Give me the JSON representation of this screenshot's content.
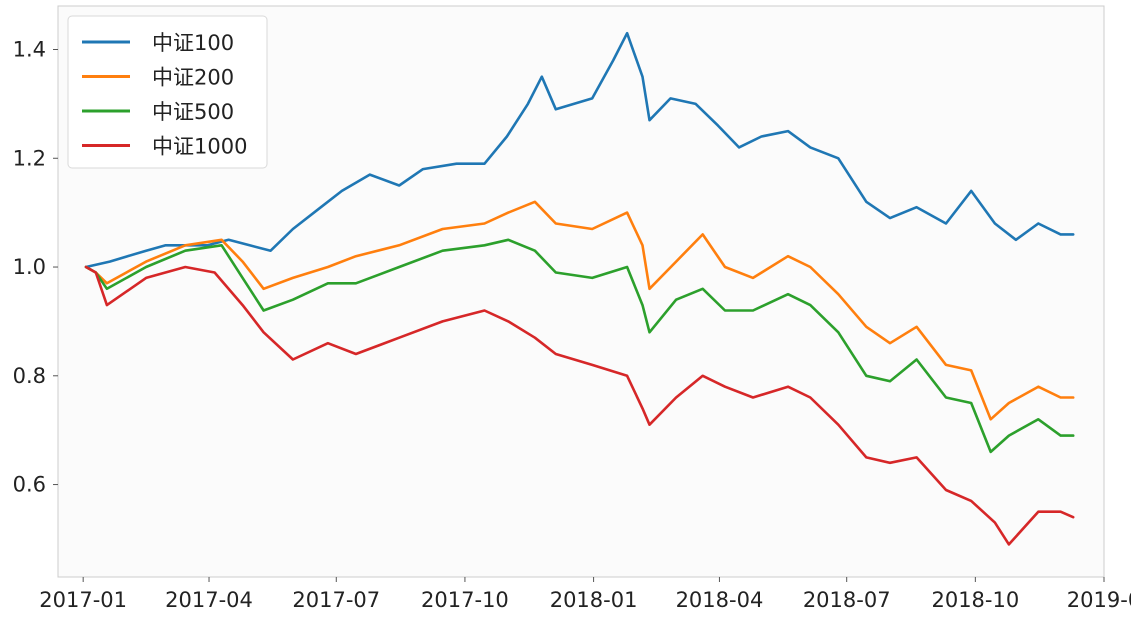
{
  "chart_data": {
    "type": "line",
    "title": "",
    "xlabel": "",
    "ylabel": "",
    "grid": false,
    "legend_position": "top-left",
    "x_ticks": [
      "2017-01",
      "2017-04",
      "2017-07",
      "2017-10",
      "2018-01",
      "2018-04",
      "2018-07",
      "2018-10",
      "2019-0"
    ],
    "x_tick_dates": [
      "2017-01-01",
      "2017-04-01",
      "2017-07-01",
      "2017-10-01",
      "2018-01-01",
      "2018-04-01",
      "2018-07-01",
      "2018-10-01",
      "2019-01-01"
    ],
    "xlim": [
      "2016-12-14",
      "2019-01-01"
    ],
    "y_ticks": [
      "0.6",
      "0.8",
      "1.0",
      "1.2",
      "1.4"
    ],
    "ylim": [
      0.43,
      1.48
    ],
    "series": [
      {
        "name": "中证100",
        "color": "#1f77b4",
        "points": [
          [
            "2017-01-03",
            1.0
          ],
          [
            "2017-01-20",
            1.01
          ],
          [
            "2017-02-15",
            1.03
          ],
          [
            "2017-03-01",
            1.04
          ],
          [
            "2017-03-31",
            1.04
          ],
          [
            "2017-04-15",
            1.05
          ],
          [
            "2017-04-30",
            1.04
          ],
          [
            "2017-05-15",
            1.03
          ],
          [
            "2017-05-31",
            1.07
          ],
          [
            "2017-06-20",
            1.11
          ],
          [
            "2017-07-05",
            1.14
          ],
          [
            "2017-07-25",
            1.17
          ],
          [
            "2017-08-15",
            1.15
          ],
          [
            "2017-09-01",
            1.18
          ],
          [
            "2017-09-25",
            1.19
          ],
          [
            "2017-10-15",
            1.19
          ],
          [
            "2017-10-31",
            1.24
          ],
          [
            "2017-11-15",
            1.3
          ],
          [
            "2017-11-25",
            1.35
          ],
          [
            "2017-12-05",
            1.29
          ],
          [
            "2017-12-31",
            1.31
          ],
          [
            "2018-01-15",
            1.38
          ],
          [
            "2018-01-25",
            1.43
          ],
          [
            "2018-02-05",
            1.35
          ],
          [
            "2018-02-10",
            1.27
          ],
          [
            "2018-02-25",
            1.31
          ],
          [
            "2018-03-15",
            1.3
          ],
          [
            "2018-03-31",
            1.26
          ],
          [
            "2018-04-15",
            1.22
          ],
          [
            "2018-05-01",
            1.24
          ],
          [
            "2018-05-20",
            1.25
          ],
          [
            "2018-06-05",
            1.22
          ],
          [
            "2018-06-25",
            1.2
          ],
          [
            "2018-07-15",
            1.12
          ],
          [
            "2018-08-01",
            1.09
          ],
          [
            "2018-08-20",
            1.11
          ],
          [
            "2018-09-10",
            1.08
          ],
          [
            "2018-09-28",
            1.14
          ],
          [
            "2018-10-15",
            1.08
          ],
          [
            "2018-10-30",
            1.05
          ],
          [
            "2018-11-15",
            1.08
          ],
          [
            "2018-12-01",
            1.06
          ],
          [
            "2018-12-10",
            1.06
          ]
        ]
      },
      {
        "name": "中证200",
        "color": "#ff7f0e",
        "points": [
          [
            "2017-01-03",
            1.0
          ],
          [
            "2017-01-10",
            0.99
          ],
          [
            "2017-01-18",
            0.97
          ],
          [
            "2017-02-15",
            1.01
          ],
          [
            "2017-03-15",
            1.04
          ],
          [
            "2017-04-10",
            1.05
          ],
          [
            "2017-04-25",
            1.01
          ],
          [
            "2017-05-10",
            0.96
          ],
          [
            "2017-05-31",
            0.98
          ],
          [
            "2017-06-25",
            1.0
          ],
          [
            "2017-07-15",
            1.02
          ],
          [
            "2017-08-15",
            1.04
          ],
          [
            "2017-09-15",
            1.07
          ],
          [
            "2017-10-15",
            1.08
          ],
          [
            "2017-11-01",
            1.1
          ],
          [
            "2017-11-20",
            1.12
          ],
          [
            "2017-12-05",
            1.08
          ],
          [
            "2017-12-31",
            1.07
          ],
          [
            "2018-01-25",
            1.1
          ],
          [
            "2018-02-05",
            1.04
          ],
          [
            "2018-02-10",
            0.96
          ],
          [
            "2018-03-01",
            1.01
          ],
          [
            "2018-03-20",
            1.06
          ],
          [
            "2018-04-05",
            1.0
          ],
          [
            "2018-04-25",
            0.98
          ],
          [
            "2018-05-20",
            1.02
          ],
          [
            "2018-06-05",
            1.0
          ],
          [
            "2018-06-25",
            0.95
          ],
          [
            "2018-07-15",
            0.89
          ],
          [
            "2018-08-01",
            0.86
          ],
          [
            "2018-08-20",
            0.89
          ],
          [
            "2018-09-10",
            0.82
          ],
          [
            "2018-09-28",
            0.81
          ],
          [
            "2018-10-12",
            0.72
          ],
          [
            "2018-10-25",
            0.75
          ],
          [
            "2018-11-15",
            0.78
          ],
          [
            "2018-12-01",
            0.76
          ],
          [
            "2018-12-10",
            0.76
          ]
        ]
      },
      {
        "name": "中证500",
        "color": "#2ca02c",
        "points": [
          [
            "2017-01-03",
            1.0
          ],
          [
            "2017-01-10",
            0.99
          ],
          [
            "2017-01-18",
            0.96
          ],
          [
            "2017-02-15",
            1.0
          ],
          [
            "2017-03-15",
            1.03
          ],
          [
            "2017-04-10",
            1.04
          ],
          [
            "2017-04-25",
            0.98
          ],
          [
            "2017-05-10",
            0.92
          ],
          [
            "2017-05-31",
            0.94
          ],
          [
            "2017-06-25",
            0.97
          ],
          [
            "2017-07-15",
            0.97
          ],
          [
            "2017-08-15",
            1.0
          ],
          [
            "2017-09-15",
            1.03
          ],
          [
            "2017-10-15",
            1.04
          ],
          [
            "2017-11-01",
            1.05
          ],
          [
            "2017-11-20",
            1.03
          ],
          [
            "2017-12-05",
            0.99
          ],
          [
            "2017-12-31",
            0.98
          ],
          [
            "2018-01-25",
            1.0
          ],
          [
            "2018-02-05",
            0.93
          ],
          [
            "2018-02-10",
            0.88
          ],
          [
            "2018-03-01",
            0.94
          ],
          [
            "2018-03-20",
            0.96
          ],
          [
            "2018-04-05",
            0.92
          ],
          [
            "2018-04-25",
            0.92
          ],
          [
            "2018-05-20",
            0.95
          ],
          [
            "2018-06-05",
            0.93
          ],
          [
            "2018-06-25",
            0.88
          ],
          [
            "2018-07-15",
            0.8
          ],
          [
            "2018-08-01",
            0.79
          ],
          [
            "2018-08-20",
            0.83
          ],
          [
            "2018-09-10",
            0.76
          ],
          [
            "2018-09-28",
            0.75
          ],
          [
            "2018-10-12",
            0.66
          ],
          [
            "2018-10-25",
            0.69
          ],
          [
            "2018-11-15",
            0.72
          ],
          [
            "2018-12-01",
            0.69
          ],
          [
            "2018-12-10",
            0.69
          ]
        ]
      },
      {
        "name": "中证1000",
        "color": "#d62728",
        "points": [
          [
            "2017-01-03",
            1.0
          ],
          [
            "2017-01-10",
            0.99
          ],
          [
            "2017-01-18",
            0.93
          ],
          [
            "2017-02-15",
            0.98
          ],
          [
            "2017-03-15",
            1.0
          ],
          [
            "2017-04-05",
            0.99
          ],
          [
            "2017-04-25",
            0.93
          ],
          [
            "2017-05-10",
            0.88
          ],
          [
            "2017-05-31",
            0.83
          ],
          [
            "2017-06-25",
            0.86
          ],
          [
            "2017-07-15",
            0.84
          ],
          [
            "2017-08-15",
            0.87
          ],
          [
            "2017-09-15",
            0.9
          ],
          [
            "2017-10-15",
            0.92
          ],
          [
            "2017-11-01",
            0.9
          ],
          [
            "2017-11-20",
            0.87
          ],
          [
            "2017-12-05",
            0.84
          ],
          [
            "2017-12-31",
            0.82
          ],
          [
            "2018-01-25",
            0.8
          ],
          [
            "2018-02-05",
            0.74
          ],
          [
            "2018-02-10",
            0.71
          ],
          [
            "2018-03-01",
            0.76
          ],
          [
            "2018-03-20",
            0.8
          ],
          [
            "2018-04-05",
            0.78
          ],
          [
            "2018-04-25",
            0.76
          ],
          [
            "2018-05-20",
            0.78
          ],
          [
            "2018-06-05",
            0.76
          ],
          [
            "2018-06-25",
            0.71
          ],
          [
            "2018-07-15",
            0.65
          ],
          [
            "2018-08-01",
            0.64
          ],
          [
            "2018-08-20",
            0.65
          ],
          [
            "2018-09-10",
            0.59
          ],
          [
            "2018-09-28",
            0.57
          ],
          [
            "2018-10-15",
            0.53
          ],
          [
            "2018-10-25",
            0.49
          ],
          [
            "2018-11-15",
            0.55
          ],
          [
            "2018-12-01",
            0.55
          ],
          [
            "2018-12-10",
            0.54
          ]
        ]
      }
    ]
  }
}
